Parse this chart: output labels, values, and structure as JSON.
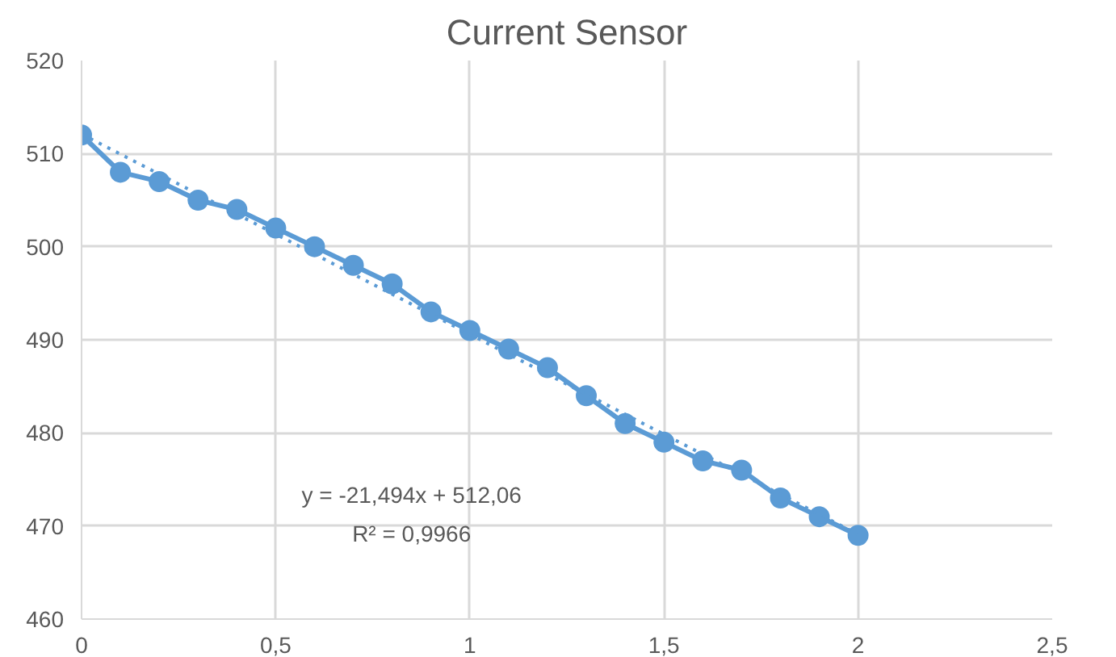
{
  "chart_data": {
    "type": "line",
    "title": "Current Sensor",
    "series": [
      {
        "color": "#5b9bd5",
        "marker": "circle",
        "line_style": "solid",
        "x": [
          0,
          0.1,
          0.2,
          0.3,
          0.4,
          0.5,
          0.6,
          0.7,
          0.8,
          0.9,
          1,
          1.1,
          1.2,
          1.3,
          1.4,
          1.5,
          1.6,
          1.7,
          1.8,
          1.9,
          2
        ],
        "values": [
          512,
          508,
          507,
          505,
          504,
          502,
          500,
          498,
          496,
          493,
          491,
          489,
          487,
          484,
          481,
          479,
          477,
          476,
          473,
          471,
          469
        ]
      },
      {
        "color": "#5b9bd5",
        "marker": "none",
        "line_style": "dotted",
        "x": [
          0,
          2
        ],
        "values": [
          512.1,
          469.1
        ]
      }
    ],
    "annotations": [
      "y = -21,494x + 512,06",
      "R² = 0,9966"
    ],
    "xlim": [
      0,
      2.5
    ],
    "xticks": [
      0,
      {
        "value": 0.5,
        "label": "0,5"
      },
      1,
      {
        "value": 1.5,
        "label": "1,5"
      },
      2,
      {
        "value": 2.5,
        "label": "2,5"
      }
    ],
    "ylim": [
      460,
      520
    ],
    "yticks": [
      460,
      470,
      480,
      490,
      500,
      510,
      520
    ],
    "grid": true
  }
}
